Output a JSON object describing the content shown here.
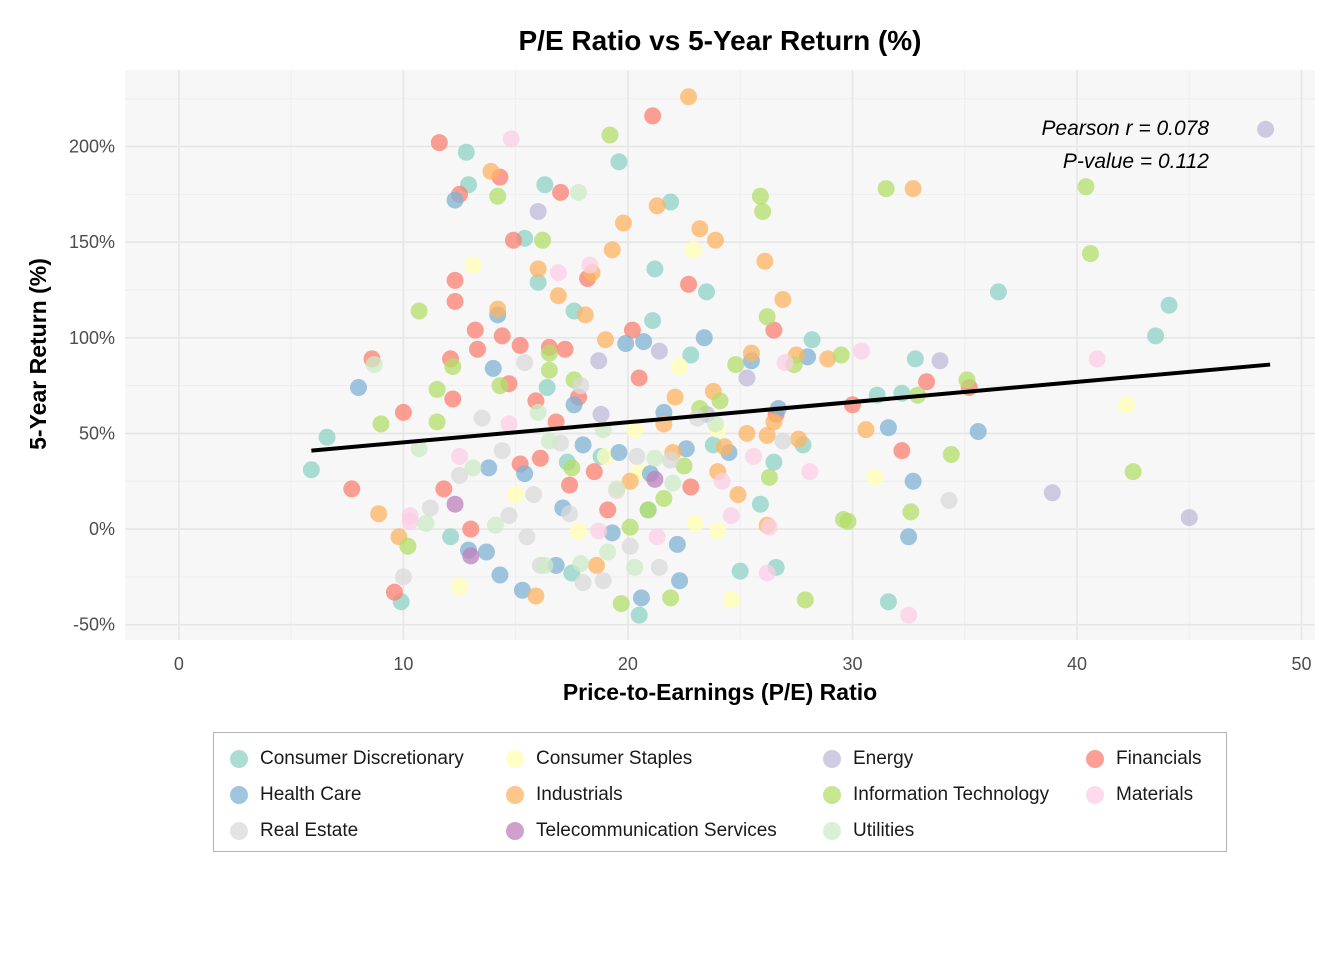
{
  "chart_data": {
    "type": "scatter",
    "title": "P/E Ratio vs 5-Year Return (%)",
    "xlabel": "Price-to-Earnings (P/E) Ratio",
    "ylabel": "5-Year Return (%)",
    "xlim": [
      -2.4,
      50.6
    ],
    "ylim": [
      -58,
      240
    ],
    "x_ticks": [
      0,
      10,
      20,
      30,
      40,
      50
    ],
    "y_ticks": [
      -50,
      0,
      50,
      100,
      150,
      200
    ],
    "y_tick_format": "{v}%",
    "grid": true,
    "legend_position": "bottom",
    "annotation": [
      "Pearson r = 0.078",
      "P-value = 0.112"
    ],
    "trend_line": {
      "x": [
        5.9,
        48.6
      ],
      "y": [
        41,
        86
      ]
    },
    "series": [
      {
        "name": "Consumer Discretionary",
        "color": "#8DD3C7",
        "points": [
          [
            5.9,
            31
          ],
          [
            6.6,
            48
          ],
          [
            9.9,
            -38
          ],
          [
            12.1,
            -4
          ],
          [
            12.8,
            197
          ],
          [
            12.9,
            180
          ],
          [
            15.4,
            152
          ],
          [
            16.0,
            129
          ],
          [
            16.3,
            180
          ],
          [
            16.4,
            74
          ],
          [
            17.3,
            35
          ],
          [
            17.5,
            -23
          ],
          [
            17.6,
            114
          ],
          [
            19.6,
            192
          ],
          [
            20.5,
            -45
          ],
          [
            21.2,
            136
          ],
          [
            21.1,
            109
          ],
          [
            21.9,
            171
          ],
          [
            22.8,
            91
          ],
          [
            23.5,
            124
          ],
          [
            23.8,
            44
          ],
          [
            25.0,
            -22
          ],
          [
            25.9,
            13
          ],
          [
            26.6,
            -20
          ],
          [
            26.5,
            35
          ],
          [
            27.8,
            44
          ],
          [
            28.2,
            99
          ],
          [
            31.1,
            70
          ],
          [
            31.6,
            -38
          ],
          [
            32.2,
            71
          ],
          [
            32.8,
            89
          ],
          [
            36.5,
            124
          ],
          [
            43.5,
            101
          ],
          [
            44.1,
            117
          ],
          [
            20.9,
            10
          ],
          [
            18.8,
            38
          ]
        ]
      },
      {
        "name": "Consumer Staples",
        "color": "#FFFFB3",
        "points": [
          [
            13.1,
            138
          ],
          [
            12.5,
            -30
          ],
          [
            22.9,
            146
          ],
          [
            23.0,
            3
          ],
          [
            24.0,
            -1
          ],
          [
            24.6,
            -37
          ],
          [
            22.3,
            85
          ],
          [
            20.3,
            52
          ],
          [
            19.0,
            38
          ],
          [
            20.5,
            30
          ],
          [
            17.8,
            -1
          ],
          [
            31.0,
            27
          ],
          [
            42.2,
            65
          ],
          [
            15.0,
            18
          ],
          [
            24.0,
            52
          ]
        ]
      },
      {
        "name": "Energy",
        "color": "#BEBADA",
        "points": [
          [
            16.0,
            166
          ],
          [
            18.7,
            88
          ],
          [
            21.4,
            93
          ],
          [
            25.3,
            79
          ],
          [
            33.9,
            88
          ],
          [
            38.9,
            19
          ],
          [
            45.0,
            6
          ],
          [
            48.4,
            209
          ],
          [
            23.5,
            60
          ],
          [
            18.8,
            60
          ]
        ]
      },
      {
        "name": "Financials",
        "color": "#FB8072",
        "points": [
          [
            8.6,
            89
          ],
          [
            7.7,
            21
          ],
          [
            9.6,
            -33
          ],
          [
            10.0,
            61
          ],
          [
            11.6,
            202
          ],
          [
            12.1,
            89
          ],
          [
            12.2,
            68
          ],
          [
            12.3,
            130
          ],
          [
            12.3,
            119
          ],
          [
            12.5,
            175
          ],
          [
            13.2,
            104
          ],
          [
            13.3,
            94
          ],
          [
            14.3,
            184
          ],
          [
            14.4,
            101
          ],
          [
            14.7,
            76
          ],
          [
            14.9,
            151
          ],
          [
            15.2,
            96
          ],
          [
            15.9,
            67
          ],
          [
            16.1,
            37
          ],
          [
            16.5,
            95
          ],
          [
            16.8,
            56
          ],
          [
            17.0,
            176
          ],
          [
            17.2,
            94
          ],
          [
            17.4,
            23
          ],
          [
            17.8,
            69
          ],
          [
            18.2,
            131
          ],
          [
            18.5,
            30
          ],
          [
            19.1,
            10
          ],
          [
            20.2,
            104
          ],
          [
            20.5,
            79
          ],
          [
            21.1,
            216
          ],
          [
            22.7,
            128
          ],
          [
            22.8,
            22
          ],
          [
            26.5,
            104
          ],
          [
            26.6,
            60
          ],
          [
            30.0,
            65
          ],
          [
            32.2,
            41
          ],
          [
            33.3,
            77
          ],
          [
            35.2,
            74
          ],
          [
            13.0,
            0
          ],
          [
            11.8,
            21
          ],
          [
            15.2,
            34
          ]
        ]
      },
      {
        "name": "Health Care",
        "color": "#80B1D3",
        "points": [
          [
            8.0,
            74
          ],
          [
            12.3,
            172
          ],
          [
            12.9,
            -11
          ],
          [
            13.7,
            -12
          ],
          [
            13.8,
            32
          ],
          [
            14.0,
            84
          ],
          [
            14.2,
            112
          ],
          [
            14.3,
            -24
          ],
          [
            15.3,
            -32
          ],
          [
            15.4,
            29
          ],
          [
            16.8,
            -19
          ],
          [
            17.6,
            65
          ],
          [
            18.0,
            44
          ],
          [
            19.3,
            -2
          ],
          [
            19.6,
            40
          ],
          [
            19.9,
            97
          ],
          [
            20.7,
            98
          ],
          [
            21.0,
            29
          ],
          [
            21.6,
            61
          ],
          [
            22.3,
            -27
          ],
          [
            22.6,
            42
          ],
          [
            23.4,
            100
          ],
          [
            24.5,
            40
          ],
          [
            25.5,
            88
          ],
          [
            26.7,
            63
          ],
          [
            28.0,
            90
          ],
          [
            31.6,
            53
          ],
          [
            32.5,
            -4
          ],
          [
            32.7,
            25
          ],
          [
            35.6,
            51
          ],
          [
            20.6,
            -36
          ],
          [
            22.2,
            -8
          ],
          [
            17.1,
            11
          ]
        ]
      },
      {
        "name": "Industrials",
        "color": "#FDB462",
        "points": [
          [
            8.9,
            8
          ],
          [
            9.8,
            -4
          ],
          [
            13.9,
            187
          ],
          [
            14.2,
            115
          ],
          [
            15.9,
            -35
          ],
          [
            16.0,
            136
          ],
          [
            16.9,
            122
          ],
          [
            18.1,
            112
          ],
          [
            18.4,
            134
          ],
          [
            19.0,
            99
          ],
          [
            19.3,
            146
          ],
          [
            19.8,
            160
          ],
          [
            21.3,
            169
          ],
          [
            22.1,
            69
          ],
          [
            22.7,
            226
          ],
          [
            23.2,
            157
          ],
          [
            23.8,
            72
          ],
          [
            23.9,
            151
          ],
          [
            24.3,
            43
          ],
          [
            24.9,
            18
          ],
          [
            25.3,
            50
          ],
          [
            25.5,
            92
          ],
          [
            26.1,
            140
          ],
          [
            26.2,
            49
          ],
          [
            26.5,
            56
          ],
          [
            26.9,
            120
          ],
          [
            27.5,
            91
          ],
          [
            27.6,
            47
          ],
          [
            28.9,
            89
          ],
          [
            30.6,
            52
          ],
          [
            32.7,
            178
          ],
          [
            18.6,
            -19
          ],
          [
            20.1,
            25
          ],
          [
            22.0,
            40
          ],
          [
            24.0,
            30
          ],
          [
            21.6,
            55
          ],
          [
            26.2,
            2
          ]
        ]
      },
      {
        "name": "Information Technology",
        "color": "#B3DE69",
        "points": [
          [
            9.0,
            55
          ],
          [
            10.2,
            -9
          ],
          [
            10.7,
            114
          ],
          [
            11.5,
            73
          ],
          [
            11.5,
            56
          ],
          [
            12.2,
            85
          ],
          [
            14.2,
            174
          ],
          [
            14.3,
            75
          ],
          [
            16.2,
            151
          ],
          [
            16.5,
            83
          ],
          [
            16.5,
            92
          ],
          [
            17.6,
            78
          ],
          [
            19.2,
            206
          ],
          [
            19.7,
            -39
          ],
          [
            20.1,
            1
          ],
          [
            21.6,
            16
          ],
          [
            21.9,
            -36
          ],
          [
            22.5,
            33
          ],
          [
            23.2,
            63
          ],
          [
            24.1,
            67
          ],
          [
            24.8,
            86
          ],
          [
            25.9,
            174
          ],
          [
            26.0,
            166
          ],
          [
            26.2,
            111
          ],
          [
            26.3,
            27
          ],
          [
            27.4,
            86
          ],
          [
            27.9,
            -37
          ],
          [
            29.5,
            91
          ],
          [
            29.6,
            5
          ],
          [
            29.8,
            4
          ],
          [
            31.5,
            178
          ],
          [
            32.6,
            9
          ],
          [
            32.9,
            70
          ],
          [
            34.4,
            39
          ],
          [
            35.1,
            78
          ],
          [
            40.4,
            179
          ],
          [
            40.6,
            144
          ],
          [
            42.5,
            30
          ],
          [
            20.9,
            10
          ],
          [
            17.5,
            32
          ]
        ]
      },
      {
        "name": "Materials",
        "color": "#FCCDE5",
        "points": [
          [
            10.3,
            7
          ],
          [
            10.3,
            4
          ],
          [
            12.5,
            38
          ],
          [
            14.8,
            204
          ],
          [
            14.7,
            55
          ],
          [
            16.9,
            134
          ],
          [
            18.3,
            138
          ],
          [
            18.7,
            -1
          ],
          [
            21.3,
            -4
          ],
          [
            24.2,
            25
          ],
          [
            24.6,
            7
          ],
          [
            25.6,
            38
          ],
          [
            26.3,
            1
          ],
          [
            27.0,
            87
          ],
          [
            28.1,
            30
          ],
          [
            30.4,
            93
          ],
          [
            32.5,
            -45
          ],
          [
            40.9,
            89
          ],
          [
            26.2,
            -23
          ],
          [
            19.5,
            20
          ]
        ]
      },
      {
        "name": "Real Estate",
        "color": "#D9D9D9",
        "points": [
          [
            10.0,
            -25
          ],
          [
            11.2,
            11
          ],
          [
            12.5,
            28
          ],
          [
            13.5,
            58
          ],
          [
            14.4,
            41
          ],
          [
            14.7,
            7
          ],
          [
            15.4,
            87
          ],
          [
            15.8,
            18
          ],
          [
            16.1,
            -19
          ],
          [
            17.4,
            8
          ],
          [
            18.0,
            -28
          ],
          [
            18.9,
            -27
          ],
          [
            20.1,
            -9
          ],
          [
            21.4,
            -20
          ],
          [
            21.9,
            36
          ],
          [
            23.1,
            58
          ],
          [
            26.9,
            46
          ],
          [
            34.3,
            15
          ],
          [
            17.9,
            75
          ],
          [
            20.4,
            38
          ],
          [
            15.5,
            -4
          ],
          [
            17.0,
            45
          ]
        ]
      },
      {
        "name": "Telecommunication Services",
        "color": "#BC80BD",
        "points": [
          [
            12.3,
            13
          ],
          [
            13.0,
            -14
          ],
          [
            21.2,
            26
          ]
        ]
      },
      {
        "name": "Utilities",
        "color": "#CCEBC5",
        "points": [
          [
            8.7,
            86
          ],
          [
            10.7,
            42
          ],
          [
            11.0,
            3
          ],
          [
            13.1,
            32
          ],
          [
            14.1,
            2
          ],
          [
            16.0,
            61
          ],
          [
            16.5,
            46
          ],
          [
            17.8,
            176
          ],
          [
            19.1,
            -12
          ],
          [
            19.5,
            21
          ],
          [
            20.3,
            -20
          ],
          [
            21.2,
            37
          ],
          [
            23.9,
            55
          ],
          [
            16.3,
            -19
          ],
          [
            17.9,
            -18
          ],
          [
            22.0,
            24
          ],
          [
            18.9,
            52
          ]
        ]
      }
    ]
  }
}
